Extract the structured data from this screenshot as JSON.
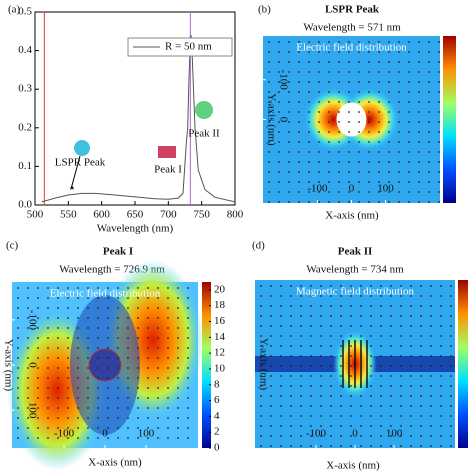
{
  "chart_data": [
    {
      "type": "line",
      "panel": "(a)",
      "xlabel": "Wavelength (nm)",
      "xlim": [
        500,
        800
      ],
      "xticks": [
        500,
        550,
        600,
        650,
        700,
        750,
        800
      ],
      "ylim": [
        0,
        0.5
      ],
      "yticks": [
        {
          "value": 0,
          "label": "0.0"
        },
        0.1,
        0.2,
        0.3,
        0.4,
        0.5
      ],
      "x": [
        510,
        530,
        550,
        570,
        590,
        620,
        650,
        680,
        700,
        715,
        722,
        726.9,
        729,
        731,
        733,
        734,
        736,
        740,
        745,
        755,
        770,
        800
      ],
      "series": [
        {
          "name": "R = 50 nm",
          "color": "#555555",
          "values": [
            0.008,
            0.018,
            0.026,
            0.03,
            0.03,
            0.026,
            0.021,
            0.016,
            0.015,
            0.018,
            0.03,
            0.16,
            0.2,
            0.33,
            0.42,
            0.44,
            0.38,
            0.2,
            0.09,
            0.04,
            0.02,
            0.008
          ]
        }
      ],
      "vlines": [
        {
          "x": 514,
          "color": "#e03a3a"
        },
        {
          "x": 733,
          "color": "#b060e0"
        }
      ],
      "annotations": [
        "LSPR Peak",
        "Peak I",
        "Peak II"
      ],
      "legend": "upper right"
    },
    {
      "type": "heatmap",
      "panel": "(b)",
      "title": "LSPR Peak",
      "subtitle": "Wavelength = 571 nm",
      "annotation": "Electric field distribution",
      "xlabel": "X-axis (nm)",
      "ylabel": "Y-axis (nm)",
      "xlim": [
        -260,
        260
      ],
      "xticks": [
        -100,
        0,
        100
      ],
      "ylim": [
        210,
        -210
      ],
      "yticks": [
        -100,
        0
      ]
    },
    {
      "type": "heatmap",
      "panel": "(c)",
      "title": "Peak I",
      "subtitle": "Wavelength = 726.9 nm",
      "annotation": "Electric field distribution",
      "xlabel": "X-axis (nm)",
      "ylabel": "Y-axis (nm)",
      "xlim": [
        -227,
        227
      ],
      "xticks": [
        -100,
        0,
        100
      ],
      "ylim": [
        184,
        -184
      ],
      "yticks": [
        -100,
        0,
        100
      ],
      "clim": [
        0,
        21
      ],
      "cticks": [
        0,
        2,
        4,
        6,
        8,
        10,
        12,
        14,
        16,
        18,
        20
      ]
    },
    {
      "type": "heatmap",
      "panel": "(d)",
      "title": "Peak II",
      "subtitle": "Wavelength = 734 nm",
      "annotation": "Magnetic field distribution",
      "xlabel": "X-axis (nm)",
      "ylabel": "Y-axis (nm)",
      "xlim": [
        -256,
        256
      ],
      "xticks": [
        -100,
        0,
        100
      ]
    }
  ]
}
